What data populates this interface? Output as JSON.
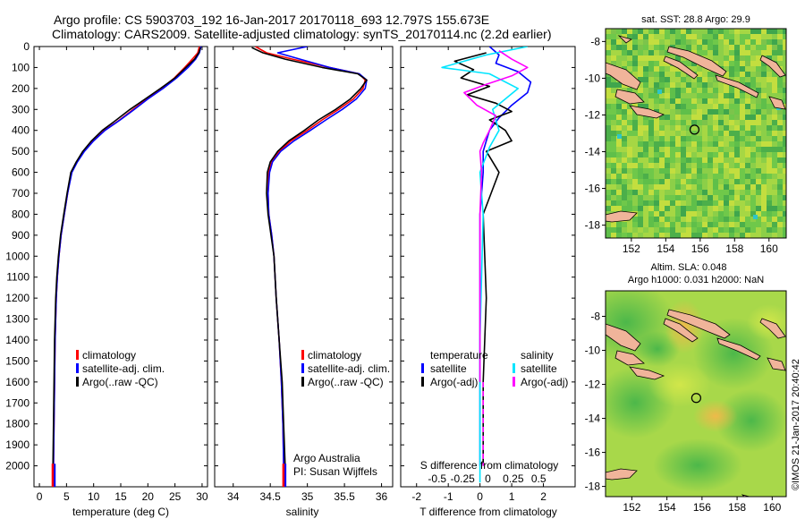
{
  "title": {
    "line1": "Argo profile: CS 5903703_192 16-Jan-2017 20170118_693 12.797S 155.673E",
    "line2": "Climatology: CARS2009. Satellite-adjusted climatology: synTS_20170114.nc (2.2d earlier)"
  },
  "credits": {
    "line1": "Argo Australia",
    "line2": "PI: Susan Wijffels"
  },
  "side_label": "©IMOS 21-Jan-2017 20:40:42",
  "colors": {
    "climatology": "#ff0000",
    "satellite": "#0000ff",
    "argo": "#000000",
    "s_satellite": "#00e5ff",
    "s_argo": "#ff00ff",
    "land": "#f0b49a"
  },
  "chart_data": [
    {
      "name": "temperature-panel",
      "type": "line",
      "xlabel": "temperature (deg C)",
      "ylabel": "",
      "xlim": [
        -1,
        31
      ],
      "ylim": [
        2100,
        0
      ],
      "xticks": [
        0,
        5,
        10,
        15,
        20,
        25,
        30
      ],
      "yticks": [
        0,
        100,
        200,
        300,
        400,
        500,
        600,
        700,
        800,
        900,
        1000,
        1100,
        1200,
        1300,
        1400,
        1500,
        1600,
        1700,
        1800,
        1900,
        2000
      ],
      "legend": [
        "climatology",
        "satellite-adj. clim.",
        "Argo(..raw -QC)"
      ],
      "series": [
        {
          "name": "climatology",
          "color": "#ff0000",
          "x": [
            29.5,
            29.2,
            28.2,
            26.8,
            24.9,
            22.5,
            19.8,
            17.3,
            14.8,
            12.0,
            9.9,
            8.2,
            6.9,
            5.9,
            5.2,
            4.6,
            4.0,
            3.6,
            3.3,
            3.1,
            2.9,
            2.8,
            2.7,
            2.6,
            2.5
          ],
          "y": [
            0,
            30,
            60,
            100,
            150,
            200,
            250,
            300,
            350,
            400,
            450,
            500,
            550,
            600,
            700,
            800,
            900,
            1000,
            1100,
            1200,
            1400,
            1600,
            1800,
            2000,
            2080
          ]
        },
        {
          "name": "satellite-adj. clim.",
          "color": "#0000ff",
          "x": [
            29.8,
            29.5,
            28.8,
            27.4,
            25.3,
            22.8,
            20.0,
            17.5,
            14.9,
            12.1,
            10.0,
            8.3,
            7.0,
            6.0,
            5.2,
            4.6,
            4.0,
            3.6,
            3.3,
            3.1,
            2.9,
            2.8,
            2.7,
            2.6,
            2.5
          ],
          "y": [
            0,
            30,
            60,
            100,
            150,
            200,
            250,
            300,
            350,
            400,
            450,
            500,
            550,
            600,
            700,
            800,
            900,
            1000,
            1100,
            1200,
            1400,
            1600,
            1800,
            2000,
            2080
          ]
        },
        {
          "name": "Argo(..raw -QC)",
          "color": "#000000",
          "x": [
            29.7,
            29.4,
            28.6,
            27.0,
            25.0,
            22.3,
            19.5,
            16.7,
            14.2,
            11.6,
            9.6,
            8.0,
            6.8,
            5.8,
            5.1,
            4.5,
            3.9,
            3.5,
            3.2,
            3.0,
            2.8,
            2.7,
            2.6,
            2.5
          ],
          "y": [
            5,
            30,
            60,
            100,
            150,
            200,
            250,
            300,
            350,
            400,
            450,
            500,
            550,
            600,
            700,
            800,
            900,
            1000,
            1100,
            1200,
            1400,
            1600,
            1800,
            2000
          ]
        }
      ]
    },
    {
      "name": "salinity-panel",
      "type": "line",
      "xlabel": "salinity",
      "ylabel": "",
      "xlim": [
        33.75,
        36.15
      ],
      "ylim": [
        2100,
        0
      ],
      "xticks": [
        34,
        34.5,
        35,
        35.5,
        36
      ],
      "legend": [
        "climatology",
        "satellite-adj. clim.",
        "Argo(..raw -QC)"
      ],
      "series": [
        {
          "name": "climatology",
          "color": "#ff0000",
          "x": [
            34.3,
            34.45,
            34.8,
            35.3,
            35.7,
            35.78,
            35.75,
            35.62,
            35.42,
            35.2,
            35.0,
            34.78,
            34.62,
            34.52,
            34.48,
            34.47,
            34.48,
            34.52,
            34.55,
            34.58,
            34.62,
            34.65,
            34.67,
            34.68,
            34.68
          ],
          "y": [
            0,
            30,
            60,
            100,
            130,
            160,
            200,
            250,
            300,
            350,
            400,
            450,
            500,
            550,
            600,
            700,
            800,
            900,
            1000,
            1200,
            1400,
            1600,
            1800,
            2000,
            2080
          ]
        },
        {
          "name": "satellite-adj. clim.",
          "color": "#0000ff",
          "x": [
            35.0,
            34.6,
            34.9,
            35.3,
            35.7,
            35.8,
            35.78,
            35.66,
            35.47,
            35.25,
            35.04,
            34.82,
            34.64,
            34.53,
            34.49,
            34.47,
            34.48,
            34.52,
            34.55,
            34.58,
            34.62,
            34.65,
            34.67,
            34.68,
            34.68
          ],
          "y": [
            0,
            30,
            60,
            100,
            130,
            160,
            200,
            250,
            300,
            350,
            400,
            450,
            500,
            550,
            600,
            700,
            800,
            900,
            1000,
            1200,
            1400,
            1600,
            1800,
            2000,
            2080
          ]
        },
        {
          "name": "Argo(..raw -QC)",
          "color": "#000000",
          "x": [
            34.25,
            34.4,
            34.7,
            35.2,
            35.68,
            35.8,
            35.72,
            35.58,
            35.38,
            35.15,
            34.96,
            34.75,
            34.6,
            34.5,
            34.46,
            34.45,
            34.47,
            34.51,
            34.55,
            34.58,
            34.62,
            34.66,
            34.68,
            34.7
          ],
          "y": [
            5,
            30,
            60,
            100,
            130,
            160,
            200,
            250,
            300,
            350,
            400,
            450,
            500,
            550,
            600,
            700,
            800,
            900,
            1000,
            1200,
            1400,
            1600,
            1800,
            2000
          ]
        }
      ]
    },
    {
      "name": "difference-panel",
      "type": "line",
      "xlabel": "T difference from climatology",
      "top_label": "S difference from climatology",
      "xlim": [
        -2.5,
        3.0
      ],
      "ylim": [
        2100,
        0
      ],
      "xticks": [
        -2,
        -1,
        0,
        1,
        2
      ],
      "s_xtick_labels": [
        "-0.5",
        "-0.25",
        "0",
        "0.25",
        "0.5"
      ],
      "legend_t": {
        "heading": "temperature",
        "items": [
          "satellite",
          "Argo(-adj)"
        ]
      },
      "legend_s": {
        "heading": "salinity",
        "items": [
          "satellite",
          "Argo(-adj)"
        ]
      },
      "series": [
        {
          "name": "T satellite",
          "color": "#0000ff",
          "x": [
            0.3,
            0.6,
            0.5,
            1.2,
            1.6,
            1.5,
            1.0,
            0.6,
            0.3,
            0.2,
            0.1,
            0.1,
            0.0,
            0.0,
            0.0,
            0.0
          ],
          "y": [
            0,
            40,
            80,
            120,
            170,
            220,
            280,
            340,
            400,
            450,
            500,
            600,
            800,
            1200,
            1600,
            2000
          ]
        },
        {
          "name": "T Argo(-adj)",
          "color": "#000000",
          "x": [
            0.2,
            -0.8,
            -0.2,
            -0.6,
            0.3,
            -0.4,
            0.5,
            1.0,
            0.3,
            0.8,
            1.0,
            0.2,
            0.6,
            0.1,
            0.2,
            0.1,
            0.1
          ],
          "y": [
            30,
            70,
            110,
            150,
            190,
            230,
            270,
            310,
            350,
            400,
            450,
            500,
            600,
            800,
            1200,
            1600,
            2000
          ]
        },
        {
          "name": "S satellite",
          "color": "#00e5ff",
          "x": [
            1.5,
            0.2,
            -1.2,
            0.3,
            1.2,
            0.4,
            0.6,
            0.3,
            0.0,
            0.1,
            0.0,
            0.0
          ],
          "y": [
            0,
            40,
            100,
            130,
            200,
            300,
            400,
            480,
            600,
            800,
            1400,
            2080
          ]
        },
        {
          "name": "S Argo(-adj)",
          "color": "#ff00ff",
          "x": [
            0.6,
            1.0,
            1.5,
            1.0,
            0.2,
            -0.5,
            -0.1,
            0.5,
            0.3,
            0.1,
            0.0,
            0.05,
            0.0,
            0.0,
            0.0
          ],
          "y": [
            20,
            60,
            100,
            140,
            180,
            220,
            280,
            330,
            400,
            460,
            500,
            600,
            800,
            1200,
            1600
          ]
        },
        {
          "name": "S Argo tail",
          "color": "#ff00ff",
          "dash": true,
          "x": [
            0.1,
            0.1,
            0.1
          ],
          "y": [
            1600,
            1850,
            2000
          ]
        }
      ]
    }
  ],
  "maps": [
    {
      "name": "sst-map",
      "title1": "sat. SST: 28.8 Argo: 29.9",
      "title2": "",
      "xticks": [
        152,
        154,
        156,
        158,
        160
      ],
      "xtick_labels": [
        "152",
        "154",
        "156",
        "158",
        "160"
      ],
      "yticks": [
        -8,
        -10,
        -12,
        -14,
        -16,
        -18
      ],
      "ytick_labels": [
        "-8",
        "-10",
        "-12",
        "-14",
        "-16",
        "-18"
      ],
      "lon_range": [
        150.5,
        161
      ],
      "lat_range": [
        -18.7,
        -7.3
      ],
      "marker": {
        "lon": 155.67,
        "lat": -12.8
      }
    },
    {
      "name": "sla-map",
      "title1": "Altim. SLA: 0.048",
      "title2": "Argo h1000: 0.031 h2000: NaN",
      "xticks": [
        152,
        154,
        156,
        158,
        160
      ],
      "xtick_labels": [
        "152",
        "154",
        "156",
        "158",
        "160"
      ],
      "yticks": [
        -8,
        -10,
        -12,
        -14,
        -16,
        -18
      ],
      "ytick_labels": [
        "-8",
        "-10",
        "-12",
        "-14",
        "-16",
        "-18"
      ],
      "lon_range": [
        150.5,
        160.8
      ],
      "lat_range": [
        -18.6,
        -6.5
      ],
      "marker": {
        "lon": 155.67,
        "lat": -12.8
      }
    }
  ]
}
